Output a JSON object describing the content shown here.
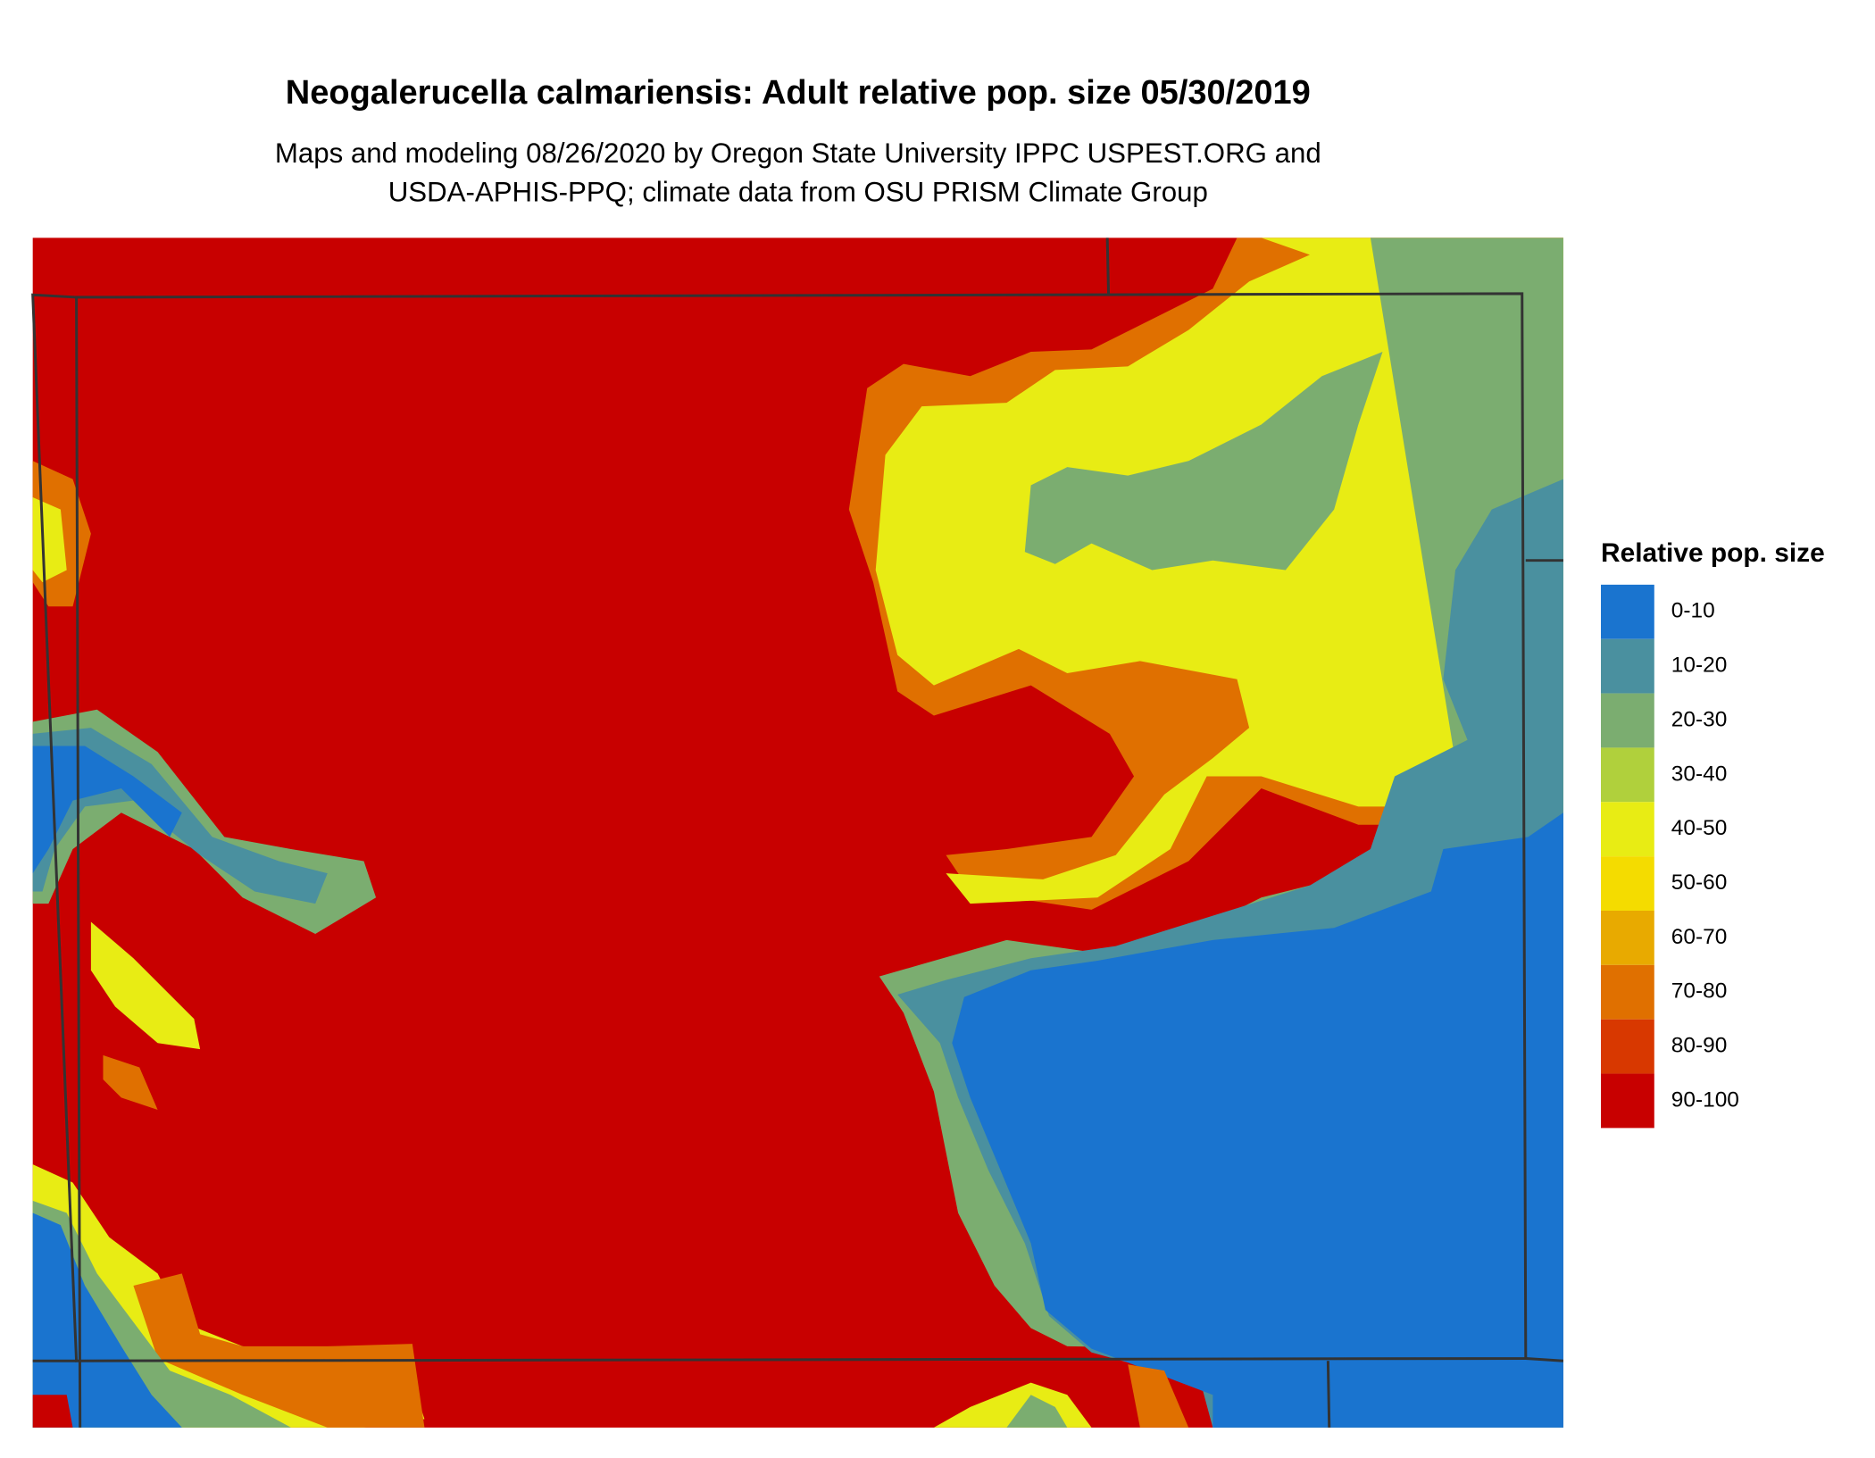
{
  "header": {
    "title": "Neogalerucella calmariensis: Adult relative pop. size 05/30/2019",
    "subtitle": [
      "Maps and modeling 08/26/2020 by Oregon State University IPPC USPEST.ORG and",
      "USDA-APHIS-PPQ; climate data from OSU PRISM Climate Group"
    ]
  },
  "legend": {
    "title": "Relative pop. size",
    "items": [
      {
        "label": "0-10",
        "color": "#1a74cf"
      },
      {
        "label": "10-20",
        "color": "#4a909f"
      },
      {
        "label": "20-30",
        "color": "#7bad70"
      },
      {
        "label": "30-40",
        "color": "#b0d03c"
      },
      {
        "label": "40-50",
        "color": "#e8ec14"
      },
      {
        "label": "50-60",
        "color": "#f4dc00"
      },
      {
        "label": "60-70",
        "color": "#e8aa00"
      },
      {
        "label": "70-80",
        "color": "#e07000"
      },
      {
        "label": "80-90",
        "color": "#d83800"
      },
      {
        "label": "90-100",
        "color": "#c80000"
      }
    ]
  }
}
